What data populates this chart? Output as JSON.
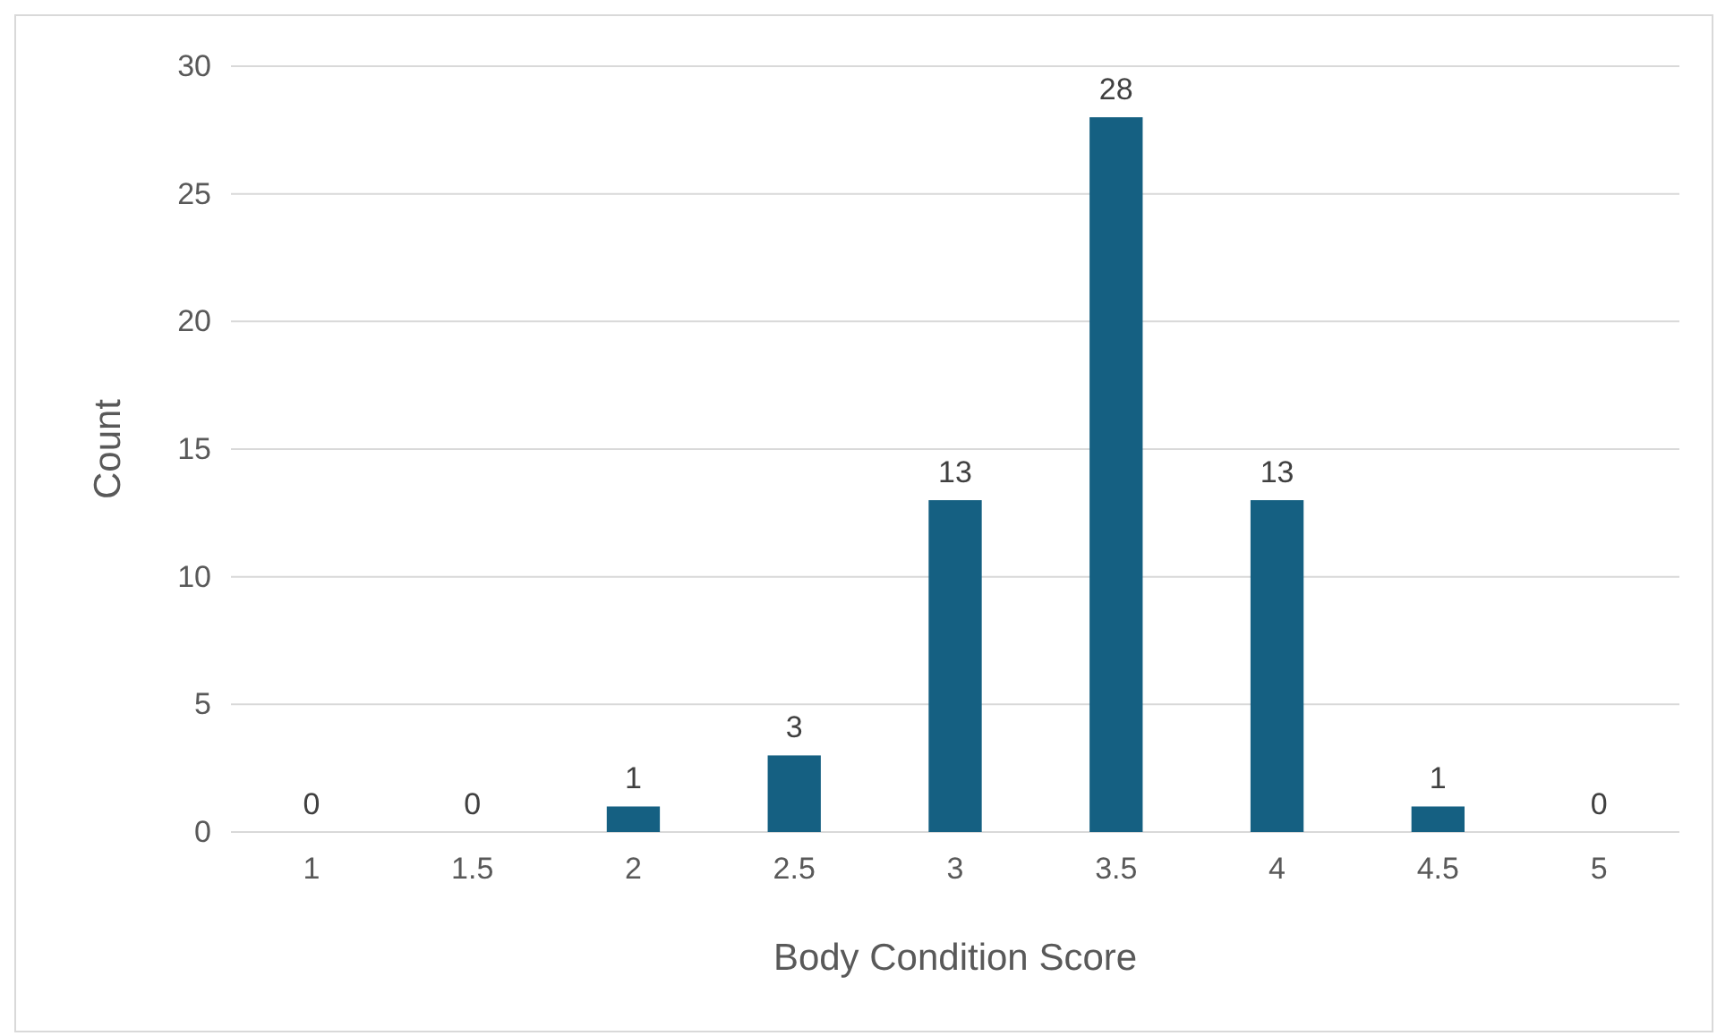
{
  "chart_data": {
    "type": "bar",
    "xlabel": "Body Condition Score",
    "ylabel": "Count",
    "categories": [
      "1",
      "1.5",
      "2",
      "2.5",
      "3",
      "3.5",
      "4",
      "4.5",
      "5"
    ],
    "values": [
      0,
      0,
      1,
      3,
      13,
      28,
      13,
      1,
      0
    ],
    "color": "#156082",
    "ylim": [
      0,
      30
    ],
    "yticks": [
      0,
      5,
      10,
      15,
      20,
      25,
      30
    ],
    "grid": "y",
    "data_labels": true
  }
}
